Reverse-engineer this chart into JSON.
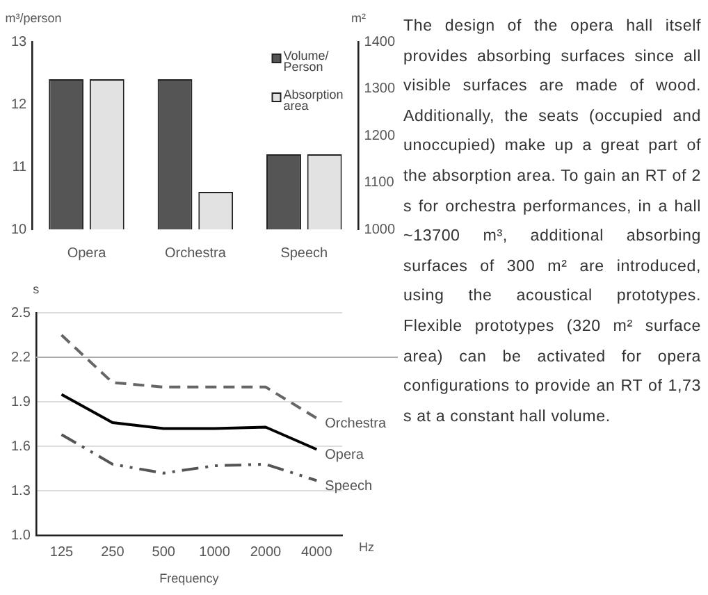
{
  "chart_data": [
    {
      "type": "bar",
      "categories": [
        "Opera",
        "Orchestra",
        "Speech"
      ],
      "ylabel": "m³/person",
      "y2label": "m²",
      "series": [
        {
          "name": "Volume/ Person",
          "color": "#555555",
          "values": [
            12.4,
            12.4,
            11.2
          ]
        },
        {
          "name": "Absorption area",
          "color": "#e2e2e2",
          "axis": "y2",
          "values": [
            1320,
            1080,
            1160
          ]
        }
      ],
      "ylim": [
        10,
        13
      ],
      "yticks": [
        10,
        11,
        12,
        13
      ],
      "y2lim": [
        1000,
        1400
      ],
      "y2ticks": [
        1000,
        1100,
        1200,
        1300,
        1400
      ],
      "legend": "top right"
    },
    {
      "type": "line",
      "categories": [
        "125",
        "250",
        "500",
        "1000",
        "2000",
        "4000"
      ],
      "xlabel": "Frequency",
      "ylabel": "s",
      "annotations": [
        "Hz"
      ],
      "series": [
        {
          "name": "Orchestra",
          "color": "#666666",
          "line_style": "dashed",
          "values": [
            2.35,
            2.03,
            2.0,
            2.0,
            2.0,
            1.79
          ]
        },
        {
          "name": "Opera",
          "color": "#000000",
          "line_style": "solid",
          "values": [
            1.95,
            1.76,
            1.72,
            1.72,
            1.73,
            1.58
          ]
        },
        {
          "name": "Speech",
          "color": "#555555",
          "line_style": "dotted",
          "values": [
            1.68,
            1.48,
            1.42,
            1.47,
            1.48,
            1.37
          ]
        }
      ],
      "ylim": [
        1.0,
        2.5
      ],
      "yticks": [
        {
          "value": 1.0,
          "label": "1.0"
        },
        1.3,
        1.6,
        1.9,
        2.2,
        2.5
      ],
      "grid": "y",
      "ref_lines": [
        {
          "axis": "y",
          "value": 2.2,
          "color": "#aaaaaa"
        }
      ]
    },
    {
      "type": "other",
      "annotations": [
        "The design of the opera hall itself provides absorbing surfaces since all visible surfaces are made of wood. Additionally, the seats (occupied and unoccupied) make up a great part of the absorption area. To gain an RT of 2 s for orchestra performances, in a hall ~13700 m³, additional absorbing surfaces of 300 m² are introduced, using the acoustical prototypes. Flexible prototypes (320 m² surface area) can be activated for opera configurations to provide an RT of 1,73 s at a constant hall volume."
      ]
    }
  ]
}
